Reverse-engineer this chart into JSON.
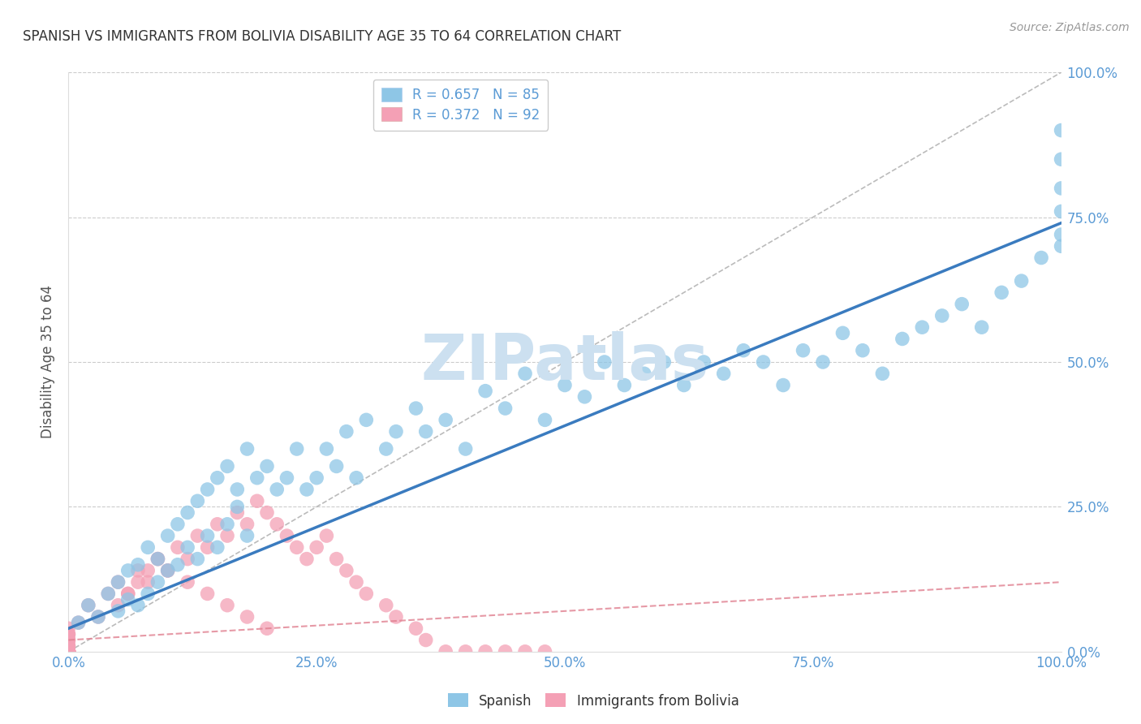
{
  "title": "SPANISH VS IMMIGRANTS FROM BOLIVIA DISABILITY AGE 35 TO 64 CORRELATION CHART",
  "source_text": "Source: ZipAtlas.com",
  "ylabel": "Disability Age 35 to 64",
  "watermark": "ZIPatlas",
  "legend1_label": "R = 0.657   N = 85",
  "legend2_label": "R = 0.372   N = 92",
  "legend_bottom1": "Spanish",
  "legend_bottom2": "Immigrants from Bolivia",
  "blue_color": "#8ec6e6",
  "pink_color": "#f4a0b5",
  "blue_line_color": "#3a7bbf",
  "pink_line_color": "#e08090",
  "axis_color": "#5b9bd5",
  "title_color": "#333333",
  "watermark_color": "#cce0f0",
  "spanish_x": [
    1,
    2,
    3,
    4,
    5,
    5,
    6,
    6,
    7,
    7,
    8,
    8,
    9,
    9,
    10,
    10,
    11,
    11,
    12,
    12,
    13,
    13,
    14,
    14,
    15,
    15,
    16,
    16,
    17,
    17,
    18,
    18,
    19,
    20,
    21,
    22,
    23,
    24,
    25,
    26,
    27,
    28,
    29,
    30,
    32,
    33,
    35,
    36,
    38,
    40,
    42,
    44,
    46,
    48,
    50,
    52,
    54,
    56,
    58,
    60,
    62,
    64,
    66,
    68,
    70,
    72,
    74,
    76,
    78,
    80,
    82,
    84,
    86,
    88,
    90,
    92,
    94,
    96,
    98,
    100,
    100,
    100,
    100,
    100,
    100
  ],
  "spanish_y": [
    5,
    8,
    6,
    10,
    7,
    12,
    9,
    14,
    8,
    15,
    10,
    18,
    12,
    16,
    14,
    20,
    15,
    22,
    18,
    24,
    16,
    26,
    20,
    28,
    18,
    30,
    22,
    32,
    25,
    28,
    20,
    35,
    30,
    32,
    28,
    30,
    35,
    28,
    30,
    35,
    32,
    38,
    30,
    40,
    35,
    38,
    42,
    38,
    40,
    35,
    45,
    42,
    48,
    40,
    46,
    44,
    50,
    46,
    48,
    50,
    46,
    50,
    48,
    52,
    50,
    46,
    52,
    50,
    55,
    52,
    48,
    54,
    56,
    58,
    60,
    56,
    62,
    64,
    68,
    70,
    72,
    76,
    80,
    85,
    90
  ],
  "bolivia_x": [
    0,
    0,
    0,
    0,
    0,
    0,
    0,
    0,
    0,
    0,
    0,
    0,
    0,
    0,
    0,
    0,
    0,
    0,
    0,
    0,
    0,
    0,
    0,
    0,
    0,
    0,
    0,
    0,
    0,
    0,
    0,
    0,
    0,
    0,
    0,
    0,
    0,
    0,
    0,
    0,
    0,
    1,
    2,
    3,
    4,
    5,
    6,
    7,
    8,
    9,
    10,
    11,
    12,
    13,
    14,
    15,
    16,
    17,
    18,
    19,
    20,
    21,
    22,
    23,
    24,
    10,
    12,
    14,
    16,
    18,
    20,
    5,
    6,
    7,
    8,
    9,
    25,
    26,
    27,
    28,
    29,
    30,
    32,
    33,
    35,
    36,
    38,
    40,
    42,
    44,
    46,
    48
  ],
  "bolivia_y": [
    0,
    0,
    0,
    0,
    0,
    0,
    0,
    0,
    0,
    0,
    0,
    0,
    0,
    0,
    0,
    0,
    0,
    0,
    0,
    0,
    0,
    0,
    0,
    0,
    0,
    0,
    0,
    0,
    0,
    1,
    2,
    3,
    2,
    1,
    3,
    2,
    1,
    0,
    4,
    3,
    2,
    5,
    8,
    6,
    10,
    12,
    10,
    14,
    12,
    16,
    14,
    18,
    16,
    20,
    18,
    22,
    20,
    24,
    22,
    26,
    24,
    22,
    20,
    18,
    16,
    14,
    12,
    10,
    8,
    6,
    4,
    8,
    10,
    12,
    14,
    16,
    18,
    20,
    16,
    14,
    12,
    10,
    8,
    6,
    4,
    2,
    0,
    0,
    0,
    0,
    0,
    0
  ],
  "blue_regline": [
    4,
    74
  ],
  "pink_regline": [
    2,
    12
  ],
  "xlim": [
    0,
    100
  ],
  "ylim": [
    0,
    100
  ],
  "xticks": [
    0,
    25,
    50,
    75,
    100
  ],
  "yticks": [
    0,
    25,
    50,
    75,
    100
  ],
  "xticklabels": [
    "0.0%",
    "25.0%",
    "50.0%",
    "75.0%",
    "100.0%"
  ],
  "yticklabels": [
    "0.0%",
    "25.0%",
    "50.0%",
    "75.0%",
    "100.0%"
  ]
}
